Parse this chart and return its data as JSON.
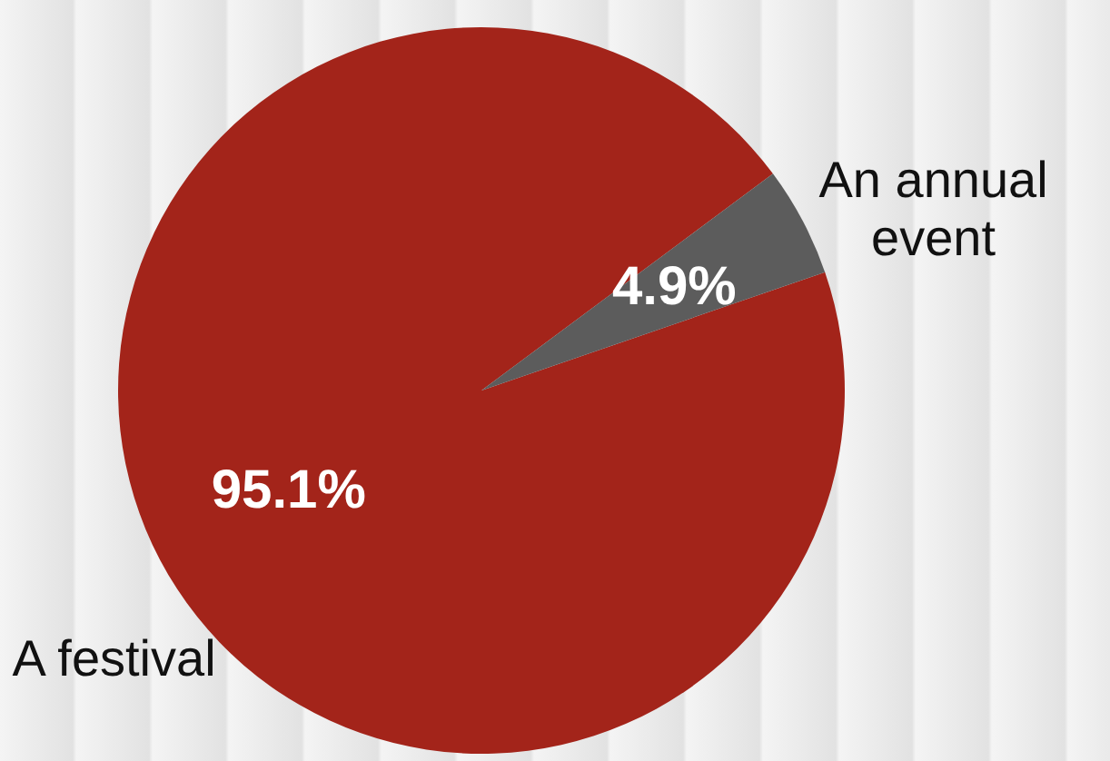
{
  "chart_data": {
    "type": "pie",
    "categories": [
      "A festival",
      "An annual event"
    ],
    "values": [
      95.1,
      4.9
    ],
    "colors": [
      "#a3241a",
      "#5c5c5c"
    ],
    "value_labels": [
      "95.1%",
      "4.9%"
    ],
    "legend": false
  }
}
